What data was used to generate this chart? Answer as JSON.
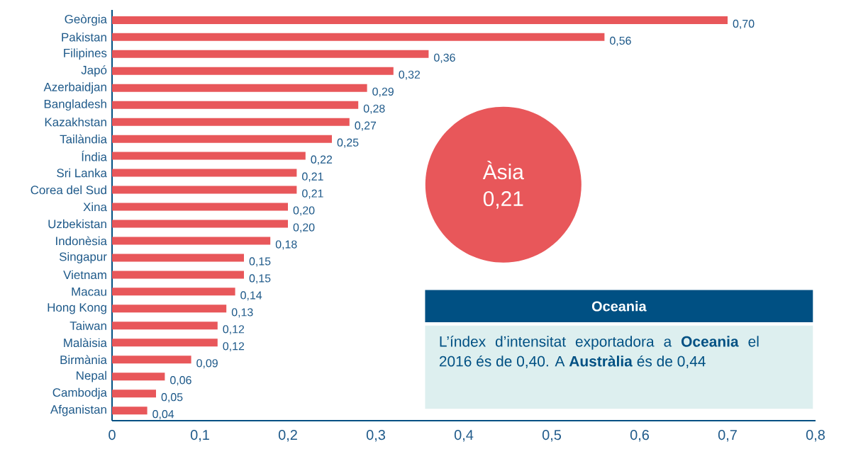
{
  "chart_data": {
    "type": "bar",
    "orientation": "horizontal",
    "categories": [
      "Geòrgia",
      "Pakistan",
      "Filipines",
      "Japó",
      "Azerbaidjan",
      "Bangladesh",
      "Kazakhstan",
      "Tailàndia",
      "Índia",
      "Sri Lanka",
      "Corea del Sud",
      "Xina",
      "Uzbekistan",
      "Indonèsia",
      "Singapur",
      "Vietnam",
      "Macau",
      "Hong Kong",
      "Taiwan",
      "Malàisia",
      "Birmània",
      "Nepal",
      "Cambodja",
      "Afganistan"
    ],
    "values": [
      0.7,
      0.56,
      0.36,
      0.32,
      0.29,
      0.28,
      0.27,
      0.25,
      0.22,
      0.21,
      0.21,
      0.2,
      0.2,
      0.18,
      0.15,
      0.15,
      0.14,
      0.13,
      0.12,
      0.12,
      0.09,
      0.06,
      0.05,
      0.04
    ],
    "value_labels": [
      "0,70",
      "0,56",
      "0,36",
      "0,32",
      "0,29",
      "0,28",
      "0,27",
      "0,25",
      "0,22",
      "0,21",
      "0,21",
      "0,20",
      "0,20",
      "0,18",
      "0,15",
      "0,15",
      "0,14",
      "0,13",
      "0,12",
      "0,12",
      "0,09",
      "0,06",
      "0,05",
      "0,04"
    ],
    "color": "#e8575a",
    "xlim": [
      0,
      0.8
    ],
    "xticks": [
      0,
      {
        "value": 0.1,
        "label": "0,1"
      },
      {
        "value": 0.2,
        "label": "0,2"
      },
      {
        "value": 0.3,
        "label": "0,3"
      },
      {
        "value": 0.4,
        "label": "0,4"
      },
      {
        "value": 0.5,
        "label": "0,5"
      },
      {
        "value": 0.6,
        "label": "0,6"
      },
      {
        "value": 0.7,
        "label": "0,7"
      },
      {
        "value": 0.8,
        "label": "0,8"
      }
    ],
    "grid": false,
    "annotations": [
      "Àsia",
      "0,21",
      "Oceania",
      "L’índex d’intensitat exportadora a **Oceania** el 2016 és de 0,40. A **Austràlia** és de 0,44"
    ]
  }
}
